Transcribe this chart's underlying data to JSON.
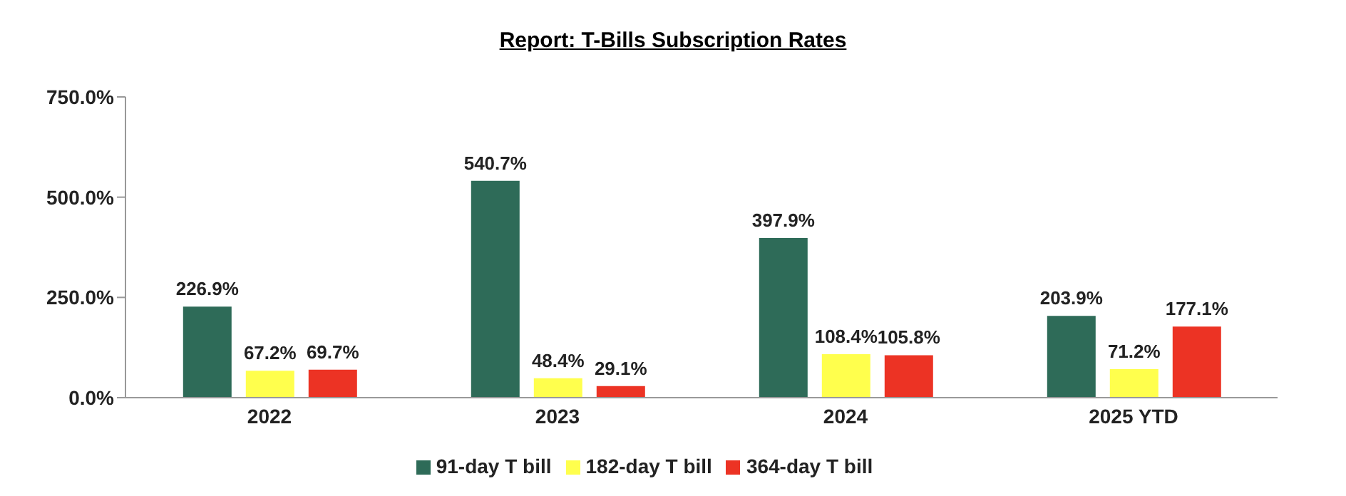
{
  "chart_data": {
    "type": "bar",
    "title": "Report: T-Bills Subscription Rates",
    "categories": [
      "2022",
      "2023",
      "2024",
      "2025 YTD"
    ],
    "series": [
      {
        "name": "91-day T bill",
        "color": "#2e6b58",
        "values": [
          226.9,
          540.7,
          397.9,
          203.9
        ],
        "value_labels": [
          "226.9%",
          "540.7%",
          "397.9%",
          "203.9%"
        ]
      },
      {
        "name": "182-day T bill",
        "color": "#ffff4d",
        "values": [
          67.2,
          48.4,
          108.4,
          71.2
        ],
        "value_labels": [
          "67.2%",
          "48.4%",
          "108.4%",
          "71.2%"
        ]
      },
      {
        "name": "364-day T bill",
        "color": "#ec3324",
        "values": [
          69.7,
          29.1,
          105.8,
          177.1
        ],
        "value_labels": [
          "69.7%",
          "29.1%",
          "105.8%",
          "177.1%"
        ]
      }
    ],
    "ylim": [
      0,
      750
    ],
    "yticks": [
      {
        "value": 0,
        "label": "0.0%"
      },
      {
        "value": 250,
        "label": "250.0%"
      },
      {
        "value": 500,
        "label": "500.0%"
      },
      {
        "value": 750,
        "label": "750.0%"
      }
    ],
    "grid": false,
    "legend": "bottom"
  }
}
